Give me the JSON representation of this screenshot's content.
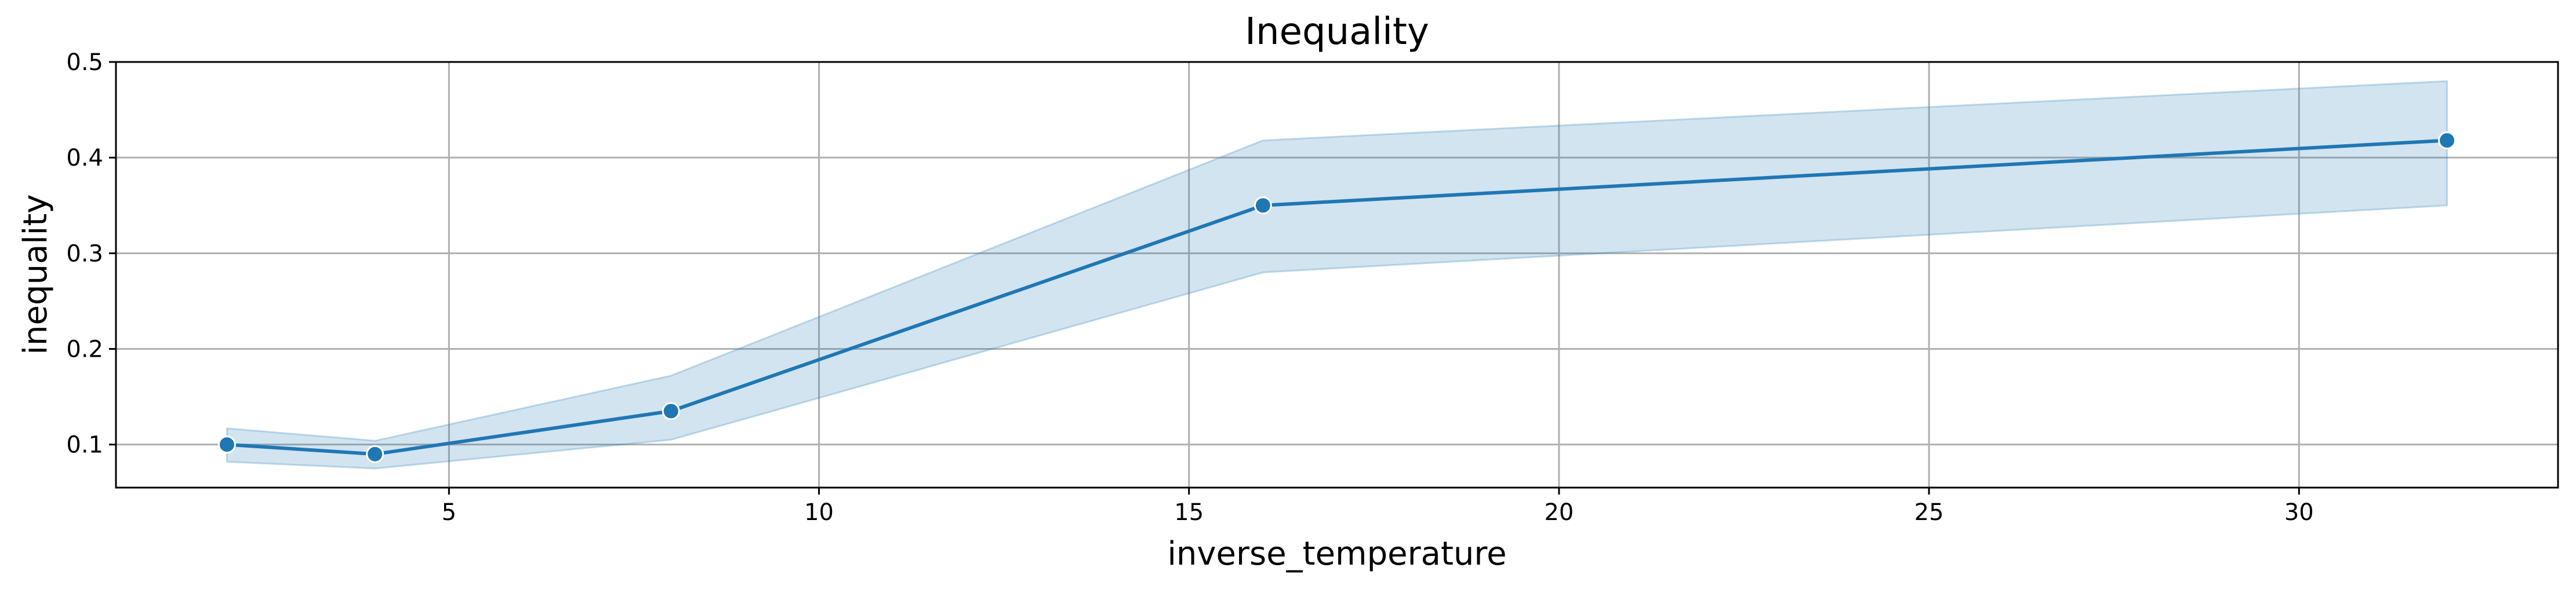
{
  "chart_data": {
    "type": "line",
    "title": "Inequality",
    "xlabel": "inverse_temperature",
    "ylabel": "inequality",
    "xlim": [
      0.5,
      33.5
    ],
    "ylim": [
      0.055,
      0.5
    ],
    "x_ticks": [
      5,
      10,
      15,
      20,
      25,
      30
    ],
    "y_ticks": [
      0.1,
      0.2,
      0.3,
      0.4,
      0.5
    ],
    "grid": true,
    "legend": "none",
    "series": [
      {
        "x": [
          2,
          4,
          8,
          16,
          32
        ],
        "y": [
          0.1,
          0.09,
          0.135,
          0.35,
          0.418
        ],
        "ci_lower": [
          0.082,
          0.075,
          0.105,
          0.28,
          0.35
        ],
        "ci_upper": [
          0.117,
          0.104,
          0.172,
          0.418,
          0.48
        ],
        "color": "#1f77b4"
      }
    ]
  },
  "colors": {
    "line": "#1f77b4",
    "band": "#1f77b4",
    "grid": "#b0b0b0",
    "axes": "#000000"
  }
}
